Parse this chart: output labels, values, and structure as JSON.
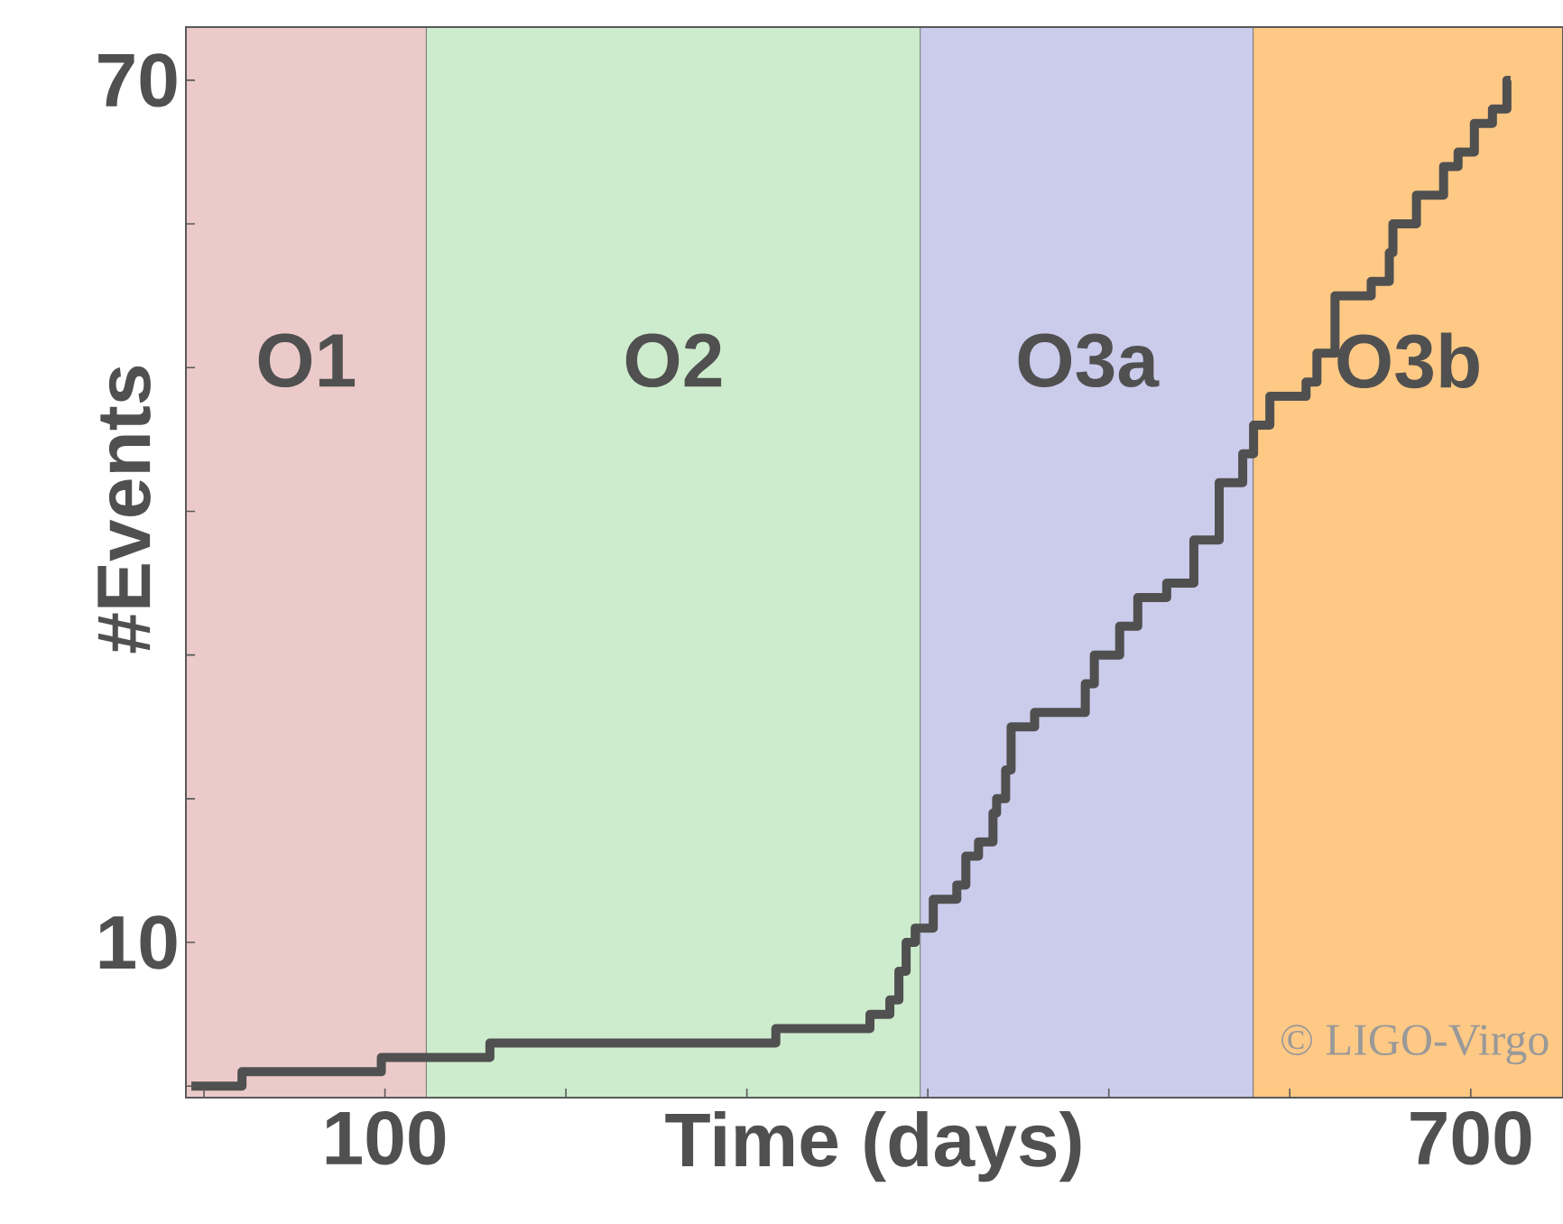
{
  "chart_data": {
    "type": "step",
    "xlabel": "Time (days)",
    "ylabel": "#Events",
    "x": [
      -7,
      21,
      98,
      158,
      316,
      368,
      379,
      384,
      388,
      393,
      403,
      416,
      421,
      428,
      436,
      438,
      443,
      446,
      459,
      487,
      492,
      506,
      516,
      532,
      547,
      561,
      574,
      580,
      589,
      609,
      615,
      625,
      645,
      655,
      657,
      670,
      685,
      693,
      702,
      712,
      720,
      722
    ],
    "series": [
      {
        "color": "#505050",
        "values": [
          0,
          1,
          2,
          3,
          4,
          5,
          6,
          8,
          10,
          11,
          13,
          14,
          16,
          17,
          19,
          20,
          22,
          25,
          26,
          28,
          30,
          32,
          34,
          35,
          38,
          42,
          44,
          46,
          48,
          49,
          51,
          55,
          56,
          58,
          60,
          62,
          64,
          65,
          67,
          68,
          70,
          70
        ]
      }
    ],
    "xlim": [
      -10,
      751
    ],
    "ylim": [
      -0.8,
      73.7
    ],
    "xticks": [
      {
        "value": 0,
        "label": null
      },
      100,
      {
        "value": 200,
        "label": null
      },
      {
        "value": 300,
        "label": null
      },
      {
        "value": 400,
        "label": null
      },
      {
        "value": 500,
        "label": null
      },
      {
        "value": 600,
        "label": null
      },
      700
    ],
    "yticks": [
      {
        "value": 0,
        "label": null
      },
      10,
      {
        "value": 20,
        "label": null
      },
      {
        "value": 30,
        "label": null
      },
      {
        "value": 40,
        "label": null
      },
      {
        "value": 50,
        "label": null
      },
      {
        "value": 60,
        "label": null
      },
      70
    ],
    "bands": [
      {
        "axis": "x",
        "from": -10,
        "to": 123,
        "label": "O1",
        "color": "#eccaca"
      },
      {
        "axis": "x",
        "from": 123,
        "to": 396,
        "label": "O2",
        "color": "#cdebcd"
      },
      {
        "axis": "x",
        "from": 396,
        "to": 580,
        "label": "O3a",
        "color": "#cbcbec"
      },
      {
        "axis": "x",
        "from": 580,
        "to": 751,
        "label": "O3b",
        "color": "#fec985"
      }
    ],
    "annotations": [
      "© LIGO-Virgo"
    ],
    "grid": false
  }
}
